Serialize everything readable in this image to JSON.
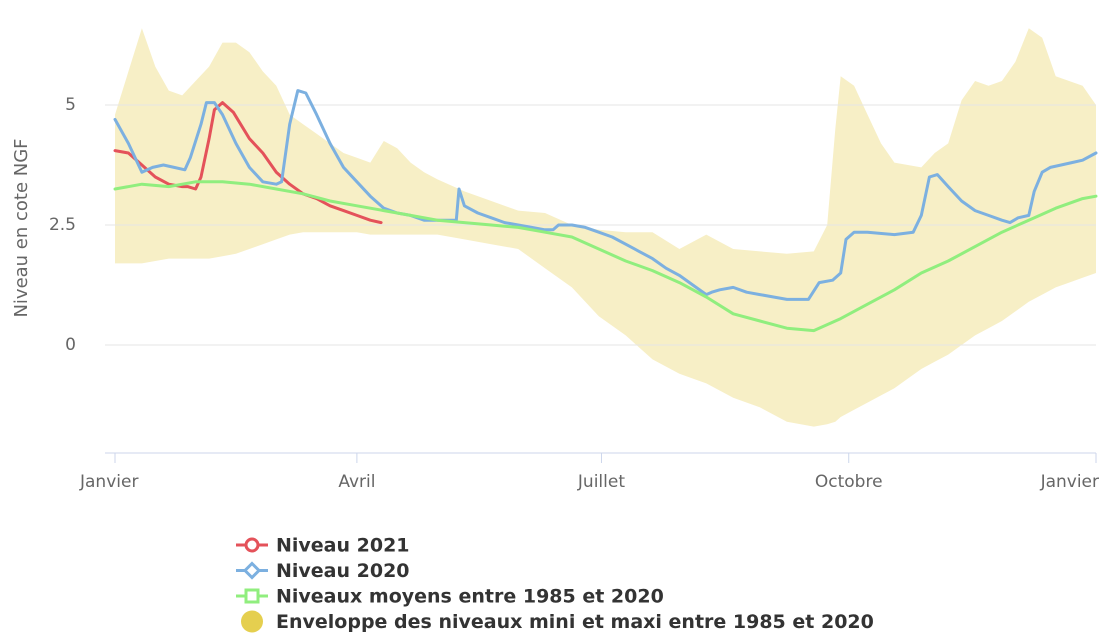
{
  "chart_data": {
    "type": "line",
    "ylabel": "Niveau en cote NGF",
    "xlim": [
      0,
      365
    ],
    "xticks": [
      {
        "value": 0,
        "label": "Janvier"
      },
      {
        "value": 90,
        "label": "Avril"
      },
      {
        "value": 181,
        "label": "Juillet"
      },
      {
        "value": 273,
        "label": "Octobre"
      },
      {
        "value": 365,
        "label": "Janvier"
      }
    ],
    "ylim": [
      -2.25,
      6.75
    ],
    "yticks": [
      0,
      2.5,
      5
    ],
    "grid": true,
    "legend": "bottom",
    "series": [
      {
        "name": "Niveau 2021",
        "color": "#e4525a",
        "marker": "circle",
        "x": [
          0,
          5,
          10,
          15,
          20,
          25,
          27,
          30,
          32,
          35,
          37,
          40,
          44,
          50,
          55,
          60,
          65,
          70,
          75,
          80,
          85,
          90,
          95,
          99
        ],
        "values": [
          4.05,
          4.0,
          3.75,
          3.5,
          3.35,
          3.3,
          3.3,
          3.25,
          3.5,
          4.3,
          4.9,
          5.05,
          4.85,
          4.3,
          4.0,
          3.6,
          3.35,
          3.15,
          3.05,
          2.9,
          2.8,
          2.7,
          2.6,
          2.55
        ]
      },
      {
        "name": "Niveau 2020",
        "color": "#7cb0e0",
        "marker": "diamond",
        "x": [
          0,
          5,
          10,
          14,
          18,
          22,
          26,
          28,
          32,
          34,
          37,
          40,
          45,
          50,
          55,
          60,
          62,
          65,
          68,
          71,
          75,
          80,
          85,
          90,
          95,
          100,
          105,
          110,
          115,
          120,
          125,
          127,
          128,
          130,
          135,
          140,
          145,
          150,
          155,
          160,
          163,
          165,
          170,
          175,
          180,
          185,
          190,
          195,
          200,
          205,
          210,
          215,
          220,
          222,
          225,
          230,
          235,
          240,
          245,
          250,
          255,
          258,
          262,
          267,
          270,
          272,
          275,
          280,
          290,
          297,
          300,
          303,
          306,
          310,
          315,
          320,
          325,
          330,
          333,
          336,
          340,
          342,
          345,
          348,
          352,
          356,
          360,
          365
        ],
        "values": [
          4.7,
          4.2,
          3.6,
          3.7,
          3.75,
          3.7,
          3.65,
          3.9,
          4.6,
          5.05,
          5.05,
          4.8,
          4.2,
          3.7,
          3.4,
          3.35,
          3.4,
          4.6,
          5.3,
          5.25,
          4.8,
          4.2,
          3.7,
          3.4,
          3.1,
          2.85,
          2.75,
          2.7,
          2.6,
          2.6,
          2.6,
          2.6,
          3.25,
          2.9,
          2.75,
          2.65,
          2.55,
          2.5,
          2.45,
          2.4,
          2.4,
          2.5,
          2.5,
          2.45,
          2.35,
          2.25,
          2.1,
          1.95,
          1.8,
          1.6,
          1.45,
          1.25,
          1.05,
          1.1,
          1.15,
          1.2,
          1.1,
          1.05,
          1.0,
          0.95,
          0.95,
          0.95,
          1.3,
          1.35,
          1.5,
          2.2,
          2.35,
          2.35,
          2.3,
          2.35,
          2.7,
          3.5,
          3.55,
          3.3,
          3.0,
          2.8,
          2.7,
          2.6,
          2.55,
          2.65,
          2.7,
          3.2,
          3.6,
          3.7,
          3.75,
          3.8,
          3.85,
          4.0
        ]
      },
      {
        "name": "Niveaux moyens entre 1985 et 2020",
        "color": "#90ee7e",
        "marker": "square",
        "x": [
          0,
          10,
          20,
          30,
          40,
          50,
          60,
          70,
          80,
          90,
          100,
          110,
          120,
          130,
          140,
          150,
          160,
          170,
          180,
          190,
          200,
          210,
          220,
          230,
          240,
          250,
          260,
          270,
          280,
          290,
          300,
          310,
          320,
          330,
          340,
          350,
          360,
          365
        ],
        "values": [
          3.25,
          3.35,
          3.3,
          3.4,
          3.4,
          3.35,
          3.25,
          3.15,
          3.0,
          2.9,
          2.8,
          2.7,
          2.6,
          2.55,
          2.5,
          2.45,
          2.35,
          2.25,
          2.0,
          1.75,
          1.55,
          1.3,
          1.0,
          0.65,
          0.5,
          0.35,
          0.3,
          0.55,
          0.85,
          1.15,
          1.5,
          1.75,
          2.05,
          2.35,
          2.6,
          2.85,
          3.05,
          3.1
        ]
      },
      {
        "name": "Enveloppe des niveaux mini et maxi entre 1985 et 2020",
        "color": "#f7efc6",
        "marker_color": "#e5cf4f",
        "marker": "dot",
        "range": true,
        "x": [
          0,
          10,
          15,
          20,
          25,
          30,
          35,
          40,
          45,
          50,
          55,
          60,
          65,
          70,
          75,
          80,
          85,
          90,
          95,
          100,
          105,
          110,
          115,
          120,
          130,
          140,
          150,
          160,
          170,
          180,
          190,
          200,
          210,
          220,
          230,
          240,
          250,
          260,
          265,
          268,
          270,
          275,
          280,
          285,
          290,
          300,
          305,
          310,
          315,
          320,
          325,
          330,
          335,
          340,
          345,
          350,
          355,
          360,
          365
        ],
        "values": [
          4.8,
          6.6,
          5.8,
          5.3,
          5.2,
          5.5,
          5.8,
          6.3,
          6.3,
          6.1,
          5.7,
          5.4,
          4.8,
          4.6,
          4.4,
          4.2,
          4.0,
          3.9,
          3.8,
          4.25,
          4.1,
          3.8,
          3.6,
          3.45,
          3.2,
          3.0,
          2.8,
          2.75,
          2.5,
          2.4,
          2.35,
          2.35,
          2.0,
          2.3,
          2.0,
          1.95,
          1.9,
          1.95,
          2.5,
          4.5,
          5.6,
          5.4,
          4.8,
          4.2,
          3.8,
          3.7,
          4.0,
          4.2,
          5.1,
          5.5,
          5.4,
          5.5,
          5.9,
          6.6,
          6.4,
          5.6,
          5.5,
          5.4,
          5.0
        ],
        "low": [
          1.7,
          1.7,
          1.75,
          1.8,
          1.8,
          1.8,
          1.8,
          1.85,
          1.9,
          2.0,
          2.1,
          2.2,
          2.3,
          2.35,
          2.35,
          2.35,
          2.35,
          2.35,
          2.3,
          2.3,
          2.3,
          2.3,
          2.3,
          2.3,
          2.2,
          2.1,
          2.0,
          1.6,
          1.2,
          0.6,
          0.2,
          -0.3,
          -0.6,
          -0.8,
          -1.1,
          -1.3,
          -1.6,
          -1.7,
          -1.65,
          -1.6,
          -1.5,
          -1.35,
          -1.2,
          -1.05,
          -0.9,
          -0.5,
          -0.35,
          -0.2,
          0.0,
          0.2,
          0.35,
          0.5,
          0.7,
          0.9,
          1.05,
          1.2,
          1.3,
          1.4,
          1.5
        ]
      }
    ]
  }
}
